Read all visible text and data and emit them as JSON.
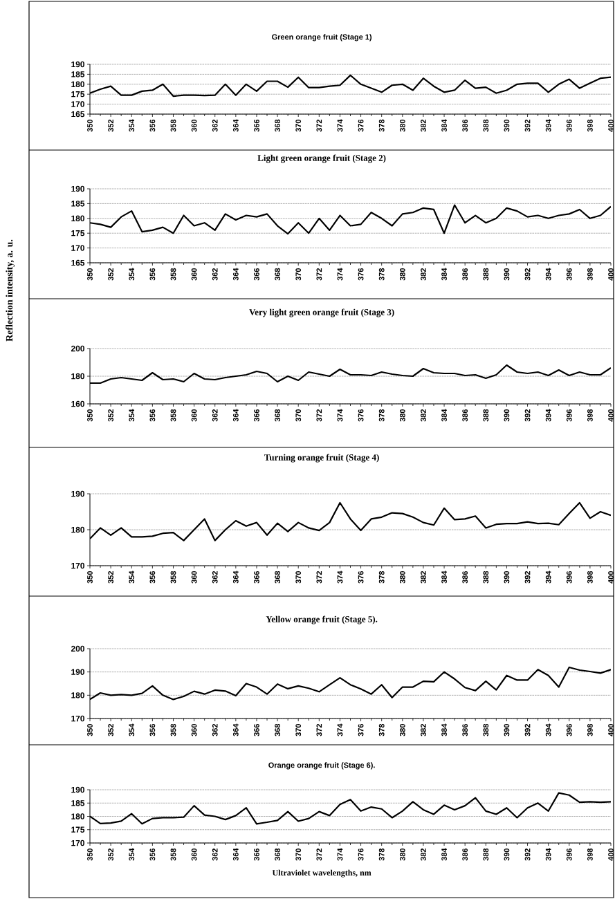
{
  "chart_data": [
    {
      "type": "line",
      "title": "Green orange fruit (Stage 1)",
      "x": [
        350,
        351,
        352,
        353,
        354,
        355,
        356,
        357,
        358,
        359,
        360,
        361,
        362,
        363,
        364,
        365,
        366,
        367,
        368,
        369,
        370,
        371,
        372,
        373,
        374,
        375,
        376,
        377,
        378,
        379,
        380,
        381,
        382,
        383,
        384,
        385,
        386,
        387,
        388,
        389,
        390,
        391,
        392,
        393,
        394,
        395,
        396,
        397,
        398,
        399,
        400
      ],
      "series": [
        {
          "color": "#000000",
          "values": [
            175.5,
            177.5,
            179,
            174.5,
            174.5,
            176.5,
            177,
            180,
            174,
            174.5,
            174.5,
            174.3,
            174.5,
            180,
            174.5,
            180,
            176.5,
            181.5,
            181.5,
            178.5,
            183.5,
            178.3,
            178.3,
            179,
            179.5,
            184.5,
            180,
            178,
            176,
            179.5,
            180,
            177,
            183,
            179,
            176,
            177,
            182,
            178,
            178.5,
            175.5,
            177,
            180,
            180.5,
            180.5,
            176,
            180,
            182.5,
            178,
            180.5,
            183,
            183.5
          ]
        }
      ],
      "xlim": [
        350,
        400
      ],
      "ylim": [
        165,
        190
      ],
      "yticks": [
        165,
        170,
        175,
        180,
        185,
        190
      ],
      "xticks": [
        350,
        352,
        354,
        356,
        358,
        360,
        362,
        364,
        366,
        368,
        370,
        372,
        374,
        376,
        378,
        380,
        382,
        384,
        386,
        388,
        390,
        392,
        394,
        396,
        398,
        400
      ],
      "grid": "y",
      "line_style": "solid"
    },
    {
      "type": "line",
      "title": "Light  green orange fruit (Stage 2)",
      "x": [
        350,
        351,
        352,
        353,
        354,
        355,
        356,
        357,
        358,
        359,
        360,
        361,
        362,
        363,
        364,
        365,
        366,
        367,
        368,
        369,
        370,
        371,
        372,
        373,
        374,
        375,
        376,
        377,
        378,
        379,
        380,
        381,
        382,
        383,
        384,
        385,
        386,
        387,
        388,
        389,
        390,
        391,
        392,
        393,
        394,
        395,
        396,
        397,
        398,
        399,
        400
      ],
      "series": [
        {
          "color": "#000000",
          "values": [
            178.5,
            178,
            177,
            180.5,
            182.5,
            175.5,
            176,
            177,
            175,
            181,
            177.5,
            178.5,
            176,
            181.5,
            179.5,
            181,
            180.5,
            181.5,
            177.5,
            174.8,
            178.5,
            175,
            180,
            176,
            181,
            177.5,
            178,
            182,
            180,
            177.5,
            181.5,
            182,
            183.5,
            183,
            175,
            184.5,
            178.5,
            181,
            178.5,
            180,
            183.5,
            182.5,
            180.5,
            181,
            180,
            181,
            181.5,
            183,
            180,
            181,
            184
          ]
        }
      ],
      "xlim": [
        350,
        400
      ],
      "ylim": [
        165,
        190
      ],
      "yticks": [
        165,
        170,
        175,
        180,
        185,
        190
      ],
      "xticks": [
        350,
        352,
        354,
        356,
        358,
        360,
        362,
        364,
        366,
        368,
        370,
        372,
        374,
        376,
        378,
        380,
        382,
        384,
        386,
        388,
        390,
        392,
        394,
        396,
        398,
        400
      ],
      "grid": "y",
      "line_style": "solid"
    },
    {
      "type": "line",
      "title": "Very light  green orange fruit (Stage 3)",
      "ylabel": "Reflection intensity, a. u.",
      "x": [
        350,
        351,
        352,
        353,
        354,
        355,
        356,
        357,
        358,
        359,
        360,
        361,
        362,
        363,
        364,
        365,
        366,
        367,
        368,
        369,
        370,
        371,
        372,
        373,
        374,
        375,
        376,
        377,
        378,
        379,
        380,
        381,
        382,
        383,
        384,
        385,
        386,
        387,
        388,
        389,
        390,
        391,
        392,
        393,
        394,
        395,
        396,
        397,
        398,
        399,
        400
      ],
      "series": [
        {
          "color": "#000000",
          "values": [
            175,
            175,
            178,
            179,
            178,
            177,
            182.5,
            177.5,
            178,
            176,
            182,
            178,
            177.5,
            179,
            180,
            181,
            183.5,
            182,
            176,
            180,
            177,
            183,
            181.5,
            180,
            185,
            181,
            181,
            180.5,
            183,
            181.5,
            180.5,
            180,
            185.5,
            182.5,
            182,
            182,
            180.5,
            181,
            178.5,
            181,
            188,
            183,
            182,
            183,
            180.5,
            184.5,
            180.5,
            183,
            181,
            181,
            186
          ]
        }
      ],
      "xlim": [
        350,
        400
      ],
      "ylim": [
        160,
        200
      ],
      "yticks": [
        160,
        180,
        200
      ],
      "xticks": [
        350,
        352,
        354,
        356,
        358,
        360,
        362,
        364,
        366,
        368,
        370,
        372,
        374,
        376,
        378,
        380,
        382,
        384,
        386,
        388,
        390,
        392,
        394,
        396,
        398,
        400
      ],
      "grid": "y",
      "line_style": "solid"
    },
    {
      "type": "line",
      "title": "Turning orange fruit (Stage 4)",
      "x": [
        350,
        351,
        352,
        353,
        354,
        355,
        356,
        357,
        358,
        359,
        360,
        361,
        362,
        363,
        364,
        365,
        366,
        367,
        368,
        369,
        370,
        371,
        372,
        373,
        374,
        375,
        376,
        377,
        378,
        379,
        380,
        381,
        382,
        383,
        384,
        385,
        386,
        387,
        388,
        389,
        390,
        391,
        392,
        393,
        394,
        395,
        396,
        397,
        398,
        399,
        400
      ],
      "series": [
        {
          "color": "#000000",
          "values": [
            177.5,
            180.5,
            178.5,
            180.5,
            178,
            178,
            178.2,
            179,
            179.2,
            177,
            180,
            183,
            177,
            180,
            182.5,
            181,
            182,
            178.5,
            181.8,
            179.5,
            182,
            180.5,
            179.8,
            182,
            187.5,
            183,
            179.8,
            183,
            183.5,
            184.7,
            184.5,
            183.5,
            182,
            181.3,
            186,
            182.8,
            183,
            183.8,
            180.5,
            181.5,
            181.7,
            181.7,
            182.2,
            181.7,
            181.8,
            181.4,
            184.5,
            187.5,
            183.2,
            185,
            184
          ]
        }
      ],
      "xlim": [
        350,
        400
      ],
      "ylim": [
        170,
        190
      ],
      "yticks": [
        170,
        180,
        190
      ],
      "xticks": [
        350,
        352,
        354,
        356,
        358,
        360,
        362,
        364,
        366,
        368,
        370,
        372,
        374,
        376,
        378,
        380,
        382,
        384,
        386,
        388,
        390,
        392,
        394,
        396,
        398,
        400
      ],
      "grid": "y",
      "line_style": "solid"
    },
    {
      "type": "line",
      "title": "Yellow orange fruit (Stage 5).",
      "x": [
        350,
        351,
        352,
        353,
        354,
        355,
        356,
        357,
        358,
        359,
        360,
        361,
        362,
        363,
        364,
        365,
        366,
        367,
        368,
        369,
        370,
        371,
        372,
        373,
        374,
        375,
        376,
        377,
        378,
        379,
        380,
        381,
        382,
        383,
        384,
        385,
        386,
        387,
        388,
        389,
        390,
        391,
        392,
        393,
        394,
        395,
        396,
        397,
        398,
        399,
        400
      ],
      "series": [
        {
          "color": "#000000",
          "values": [
            178.2,
            181,
            180,
            180.3,
            180,
            180.8,
            184,
            180,
            178.2,
            179.5,
            181.7,
            180.5,
            182.2,
            181.8,
            179.8,
            185,
            183.5,
            180.5,
            184.8,
            182.8,
            184,
            183,
            181.5,
            184.5,
            187.5,
            184.5,
            182.7,
            180.5,
            184.5,
            179,
            183.5,
            183.5,
            186,
            185.8,
            190,
            187,
            183.3,
            182,
            186,
            182.3,
            188.5,
            186.5,
            186.5,
            191,
            188.5,
            183.5,
            192,
            190.8,
            190.2,
            189.5,
            191
          ]
        }
      ],
      "xlim": [
        350,
        400
      ],
      "ylim": [
        170,
        200
      ],
      "yticks": [
        170,
        180,
        190,
        200
      ],
      "xticks": [
        350,
        352,
        354,
        356,
        358,
        360,
        362,
        364,
        366,
        368,
        370,
        372,
        374,
        376,
        378,
        380,
        382,
        384,
        386,
        388,
        390,
        392,
        394,
        396,
        398,
        400
      ],
      "grid": "y",
      "line_style": "solid"
    },
    {
      "type": "line",
      "title": "Orange orange fruit (Stage 6).",
      "xlabel": "Ultraviolet wavelengths, nm",
      "x": [
        350,
        351,
        352,
        353,
        354,
        355,
        356,
        357,
        358,
        359,
        360,
        361,
        362,
        363,
        364,
        365,
        366,
        367,
        368,
        369,
        370,
        371,
        372,
        373,
        374,
        375,
        376,
        377,
        378,
        379,
        380,
        381,
        382,
        383,
        384,
        385,
        386,
        387,
        388,
        389,
        390,
        391,
        392,
        393,
        394,
        395,
        396,
        397,
        398,
        399,
        400
      ],
      "series": [
        {
          "color": "#000000",
          "values": [
            180,
            177.3,
            177.5,
            178.2,
            181,
            177.2,
            179.2,
            179.5,
            179.5,
            179.7,
            184,
            180.5,
            180,
            178.8,
            180.3,
            183.2,
            177.2,
            177.8,
            178.5,
            181.8,
            178.2,
            179.2,
            181.8,
            180.3,
            184.5,
            186.3,
            182,
            183.5,
            182.8,
            179.5,
            182,
            185.5,
            182.5,
            180.8,
            184.2,
            182.5,
            184,
            187,
            182,
            180.8,
            183.2,
            179.5,
            183.2,
            185,
            182,
            188.8,
            188,
            185.3,
            185.5,
            185.3,
            185.5
          ]
        }
      ],
      "xlim": [
        350,
        400
      ],
      "ylim": [
        170,
        190
      ],
      "yticks": [
        170,
        175,
        180,
        185,
        190
      ],
      "xticks": [
        350,
        352,
        354,
        356,
        358,
        360,
        362,
        364,
        366,
        368,
        370,
        372,
        374,
        376,
        378,
        380,
        382,
        384,
        386,
        388,
        390,
        392,
        394,
        396,
        398,
        400
      ],
      "grid": "y",
      "line_style": "solid"
    }
  ]
}
